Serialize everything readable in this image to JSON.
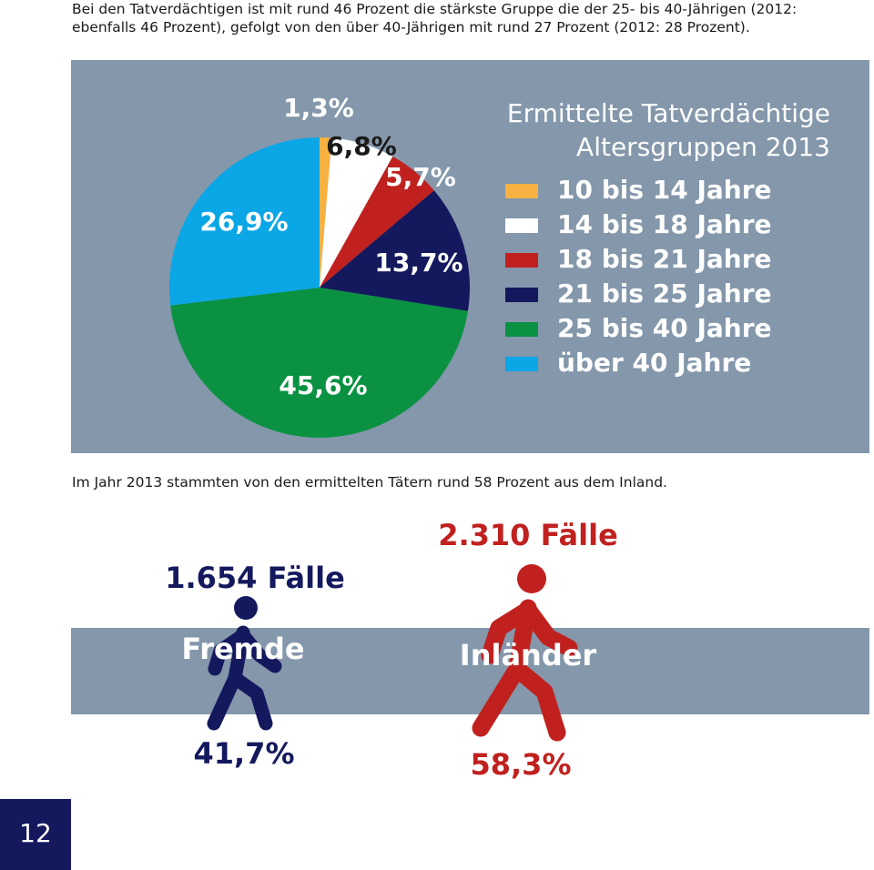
{
  "paragraphs": [
    "Bei den Tatverdächtigen ist mit rund 46 Prozent die stärkste Gruppe die der 25- bis 40-Jährigen (2012: ebenfalls 46 Prozent), gefolgt von den über 40-Jährigen mit rund 27 Prozent (2012: 28 Prozent).",
    "Im Jahr 2013 stammten von den ermittelten Tätern rund 58 Prozent aus dem Inland."
  ],
  "chart_data": {
    "type": "pie",
    "title": [
      "Ermittelte Tatverdächtige",
      "Altersgruppen 2013"
    ],
    "categories": [
      "10 bis 14 Jahre",
      "14 bis 18 Jahre",
      "18 bis 21 Jahre",
      "21 bis 25 Jahre",
      "25 bis 40 Jahre",
      "über 40 Jahre"
    ],
    "values": [
      1.3,
      6.8,
      5.7,
      13.7,
      45.6,
      26.9
    ],
    "value_labels": [
      "1,3%",
      "6,8%",
      "5,7%",
      "13,7%",
      "45,6%",
      "26,9%"
    ],
    "colors": [
      "#f7b140",
      "#ffffff",
      "#c0211f",
      "#14195e",
      "#0a9242",
      "#0aa6e6"
    ]
  },
  "comparison": [
    {
      "cases": "1.654 Fälle",
      "group": "Fremde",
      "share": "41,7%"
    },
    {
      "cases": "2.310 Fälle",
      "group": "Inländer",
      "share": "58,3%"
    }
  ],
  "page_number": "12"
}
